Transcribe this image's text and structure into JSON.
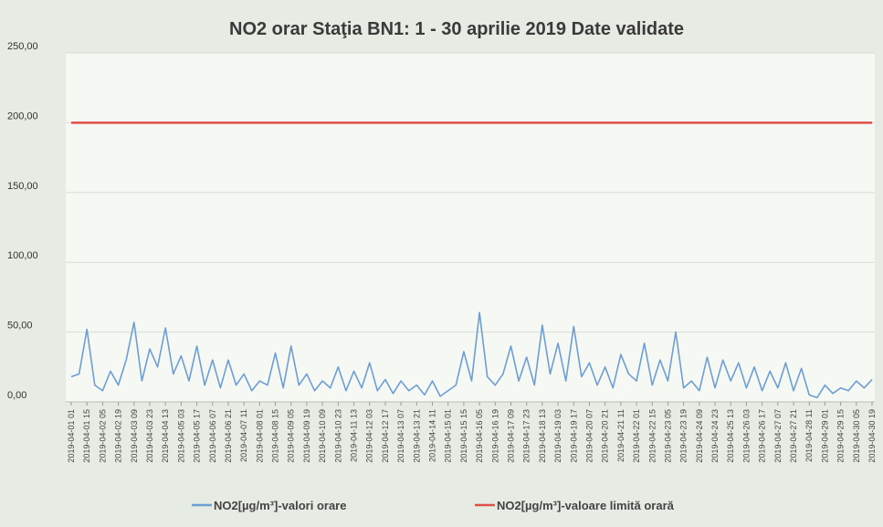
{
  "chart_data": {
    "type": "line",
    "title": "NO2 orar Staţia BN1: 1 - 30 aprilie 2019 Date validate",
    "categories": [
      "2019-04-01 01",
      null,
      "2019-04-01 15",
      null,
      "2019-04-02 05",
      null,
      "2019-04-02 19",
      null,
      "2019-04-03 09",
      null,
      "2019-04-03 23",
      null,
      "2019-04-04 13",
      null,
      "2019-04-05 03",
      null,
      "2019-04-05 17",
      null,
      "2019-04-06 07",
      null,
      "2019-04-06 21",
      null,
      "2019-04-07 11",
      null,
      "2019-04-08 01",
      null,
      "2019-04-08 15",
      null,
      "2019-04-09 05",
      null,
      "2019-04-09 19",
      null,
      "2019-04-10 09",
      null,
      "2019-04-10 23",
      null,
      "2019-04-11 13",
      null,
      "2019-04-12 03",
      null,
      "2019-04-12 17",
      null,
      "2019-04-13 07",
      null,
      "2019-04-13 21",
      null,
      "2019-04-14 11",
      null,
      "2019-04-15 01",
      null,
      "2019-04-15 15",
      null,
      "2019-04-16 05",
      null,
      "2019-04-16 19",
      null,
      "2019-04-17 09",
      null,
      "2019-04-17 23",
      null,
      "2019-04-18 13",
      null,
      "2019-04-19 03",
      null,
      "2019-04-19 17",
      null,
      "2019-04-20 07",
      null,
      "2019-04-20 21",
      null,
      "2019-04-21 11",
      null,
      "2019-04-22 01",
      null,
      "2019-04-22 15",
      null,
      "2019-04-23 05",
      null,
      "2019-04-23 19",
      null,
      "2019-04-24 09",
      null,
      "2019-04-24 23",
      null,
      "2019-04-25 13",
      null,
      "2019-04-26 03",
      null,
      "2019-04-26 17",
      null,
      "2019-04-27 07",
      null,
      "2019-04-27 21",
      null,
      "2019-04-28 11",
      null,
      "2019-04-29 01",
      null,
      "2019-04-29 15",
      null,
      "2019-04-30 05",
      null,
      "2019-04-30 19"
    ],
    "series": [
      {
        "name": "NO2[µg/m³]-valori orare",
        "color": "#6d9ed6",
        "values": [
          18,
          20,
          52,
          12,
          8,
          22,
          12,
          30,
          57,
          15,
          38,
          25,
          53,
          20,
          33,
          15,
          40,
          12,
          30,
          10,
          30,
          12,
          20,
          8,
          15,
          12,
          35,
          10,
          40,
          12,
          20,
          8,
          15,
          10,
          25,
          8,
          22,
          10,
          28,
          8,
          16,
          6,
          15,
          8,
          12,
          5,
          15,
          4,
          8,
          12,
          36,
          15,
          64,
          18,
          12,
          20,
          40,
          15,
          32,
          12,
          55,
          20,
          42,
          15,
          54,
          18,
          28,
          12,
          25,
          10,
          34,
          20,
          15,
          42,
          12,
          30,
          15,
          50,
          10,
          15,
          8,
          32,
          10,
          30,
          15,
          28,
          10,
          25,
          8,
          22,
          10,
          28,
          8,
          24,
          5,
          3,
          12,
          6,
          10,
          8,
          15,
          10,
          16
        ]
      },
      {
        "name": "NO2[µg/m³]-valoare limită orară",
        "color": "#e0504a",
        "values": [
          200,
          200,
          200,
          200,
          200,
          200,
          200,
          200,
          200,
          200,
          200,
          200,
          200,
          200,
          200,
          200,
          200,
          200,
          200,
          200,
          200,
          200,
          200,
          200,
          200,
          200,
          200,
          200,
          200,
          200,
          200,
          200,
          200,
          200,
          200,
          200,
          200,
          200,
          200,
          200,
          200,
          200,
          200,
          200,
          200,
          200,
          200,
          200,
          200,
          200,
          200,
          200,
          200,
          200,
          200,
          200,
          200,
          200,
          200,
          200,
          200,
          200,
          200,
          200,
          200,
          200,
          200,
          200,
          200,
          200,
          200,
          200,
          200,
          200,
          200,
          200,
          200,
          200,
          200,
          200,
          200,
          200,
          200,
          200,
          200,
          200,
          200,
          200,
          200,
          200,
          200,
          200,
          200,
          200,
          200,
          200,
          200,
          200,
          200,
          200,
          200,
          200,
          200
        ]
      }
    ],
    "ylim": [
      0,
      250
    ],
    "yticks": [
      {
        "value": 0,
        "label": "0,00"
      },
      {
        "value": 50,
        "label": "50,00"
      },
      {
        "value": 100,
        "label": "100,00"
      },
      {
        "value": 150,
        "label": "150,00"
      },
      {
        "value": 200,
        "label": "200,00"
      },
      {
        "value": 250,
        "label": "250,00"
      }
    ],
    "grid": true,
    "legend": "bottom"
  }
}
